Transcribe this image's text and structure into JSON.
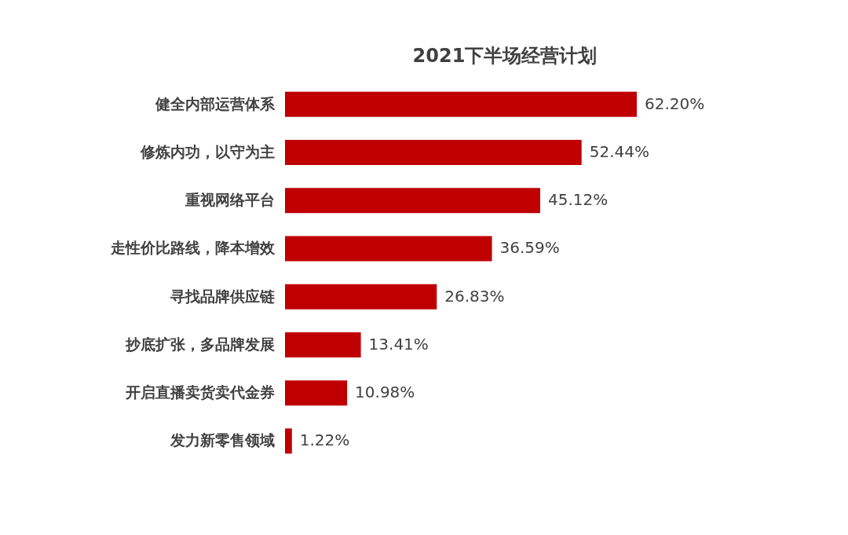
{
  "chart_data": {
    "type": "bar",
    "orientation": "horizontal",
    "title": "2021下半场经营计划",
    "categories": [
      "健全内部运营体系",
      "修炼内功，以守为主",
      "重视网络平台",
      "走性价比路线，降本增效",
      "寻找品牌供应链",
      "抄底扩张，多品牌发展",
      "开启直播卖货卖代金券",
      "发力新零售领域"
    ],
    "values": [
      62.2,
      52.44,
      45.12,
      36.59,
      26.83,
      13.41,
      10.98,
      1.22
    ],
    "value_labels": [
      "62.20%",
      "52.44%",
      "45.12%",
      "36.59%",
      "26.83%",
      "13.41%",
      "10.98%",
      "1.22%"
    ],
    "color": "#c00000",
    "grid": false
  }
}
